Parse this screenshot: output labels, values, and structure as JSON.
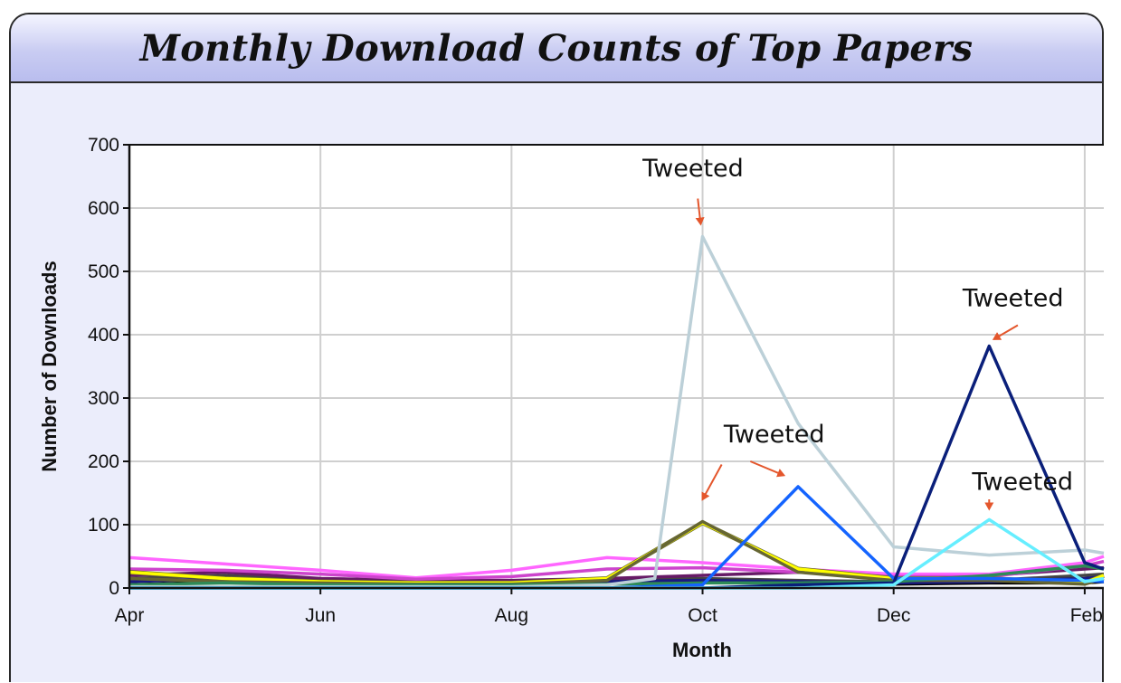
{
  "chart_data": {
    "type": "line",
    "title": "Monthly Download Counts of Top Papers",
    "xlabel": "Month",
    "ylabel": "Number of Downloads",
    "ylim": [
      0,
      700
    ],
    "xlim": [
      0,
      10.2
    ],
    "y_ticks": [
      0,
      100,
      200,
      300,
      400,
      500,
      600,
      700
    ],
    "x_ticks": [
      {
        "x": 0,
        "label": "Apr"
      },
      {
        "x": 2,
        "label": "Jun"
      },
      {
        "x": 4,
        "label": "Aug"
      },
      {
        "x": 6,
        "label": "Oct"
      },
      {
        "x": 8,
        "label": "Dec"
      },
      {
        "x": 10,
        "label": "Feb"
      }
    ],
    "grid": true,
    "legend": "none",
    "series": [
      {
        "color": "#000000",
        "x": [
          0,
          1,
          2,
          3,
          4,
          5,
          6,
          7,
          8,
          9,
          10,
          10.2
        ],
        "values": [
          5,
          10,
          8,
          6,
          6,
          8,
          10,
          8,
          6,
          8,
          8,
          10
        ]
      },
      {
        "color": "#444444",
        "x": [
          0,
          1,
          2,
          3,
          4,
          5,
          6,
          7,
          8,
          9,
          10,
          10.2
        ],
        "values": [
          15,
          20,
          12,
          10,
          10,
          12,
          15,
          12,
          10,
          12,
          20,
          22
        ]
      },
      {
        "color": "#1a1a80",
        "x": [
          0,
          1,
          2,
          3,
          4,
          5,
          6,
          7,
          8,
          9,
          10,
          10.2
        ],
        "values": [
          10,
          15,
          10,
          8,
          8,
          10,
          12,
          10,
          8,
          10,
          15,
          18
        ]
      },
      {
        "color": "#661a66",
        "x": [
          0,
          1,
          2,
          3,
          4,
          5,
          6,
          7,
          8,
          9,
          10,
          10.2
        ],
        "values": [
          20,
          25,
          15,
          12,
          12,
          15,
          20,
          25,
          18,
          20,
          30,
          32
        ]
      },
      {
        "color": "#ff66ff",
        "x": [
          0,
          1,
          2,
          3,
          4,
          5,
          6,
          7,
          8,
          9,
          10,
          10.2
        ],
        "values": [
          48,
          38,
          28,
          16,
          28,
          48,
          40,
          30,
          22,
          22,
          40,
          50
        ]
      },
      {
        "color": "#cc44cc",
        "x": [
          0,
          1,
          2,
          3,
          4,
          5,
          6,
          7,
          8,
          9,
          10,
          10.2
        ],
        "values": [
          30,
          28,
          22,
          14,
          18,
          30,
          32,
          25,
          18,
          18,
          35,
          42
        ]
      },
      {
        "color": "#ffff00",
        "x": [
          0,
          1,
          2,
          3,
          4,
          5,
          6,
          7,
          8,
          9,
          10,
          10.2
        ],
        "values": [
          25,
          15,
          10,
          8,
          8,
          15,
          103,
          30,
          15,
          15,
          8,
          20
        ]
      },
      {
        "color": "#666633",
        "x": [
          0,
          1,
          2,
          3,
          4,
          5,
          6,
          7,
          8,
          9,
          10,
          10.2
        ],
        "values": [
          15,
          10,
          8,
          6,
          6,
          12,
          105,
          25,
          12,
          12,
          6,
          15
        ]
      },
      {
        "color": "#2e8b57",
        "x": [
          0,
          1,
          2,
          3,
          4,
          5,
          6,
          7,
          8,
          9,
          10,
          10.2
        ],
        "values": [
          5,
          8,
          5,
          5,
          5,
          6,
          8,
          8,
          10,
          20,
          35,
          30
        ]
      },
      {
        "color": "#bcd0d8",
        "x": [
          0,
          1,
          2,
          3,
          4,
          5,
          5.5,
          6,
          7,
          8,
          9,
          10,
          10.2
        ],
        "values": [
          2,
          2,
          2,
          2,
          2,
          5,
          15,
          555,
          260,
          65,
          52,
          60,
          55
        ]
      },
      {
        "color": "#1464ff",
        "x": [
          0,
          1,
          2,
          3,
          4,
          5,
          6,
          7,
          8,
          9,
          10,
          10.2
        ],
        "values": [
          0,
          0,
          0,
          0,
          0,
          0,
          5,
          160,
          15,
          15,
          12,
          10
        ]
      },
      {
        "color": "#0a1f7a",
        "x": [
          0,
          1,
          2,
          3,
          4,
          5,
          6,
          7,
          8,
          9,
          10,
          10.2
        ],
        "values": [
          0,
          0,
          0,
          0,
          0,
          0,
          0,
          5,
          8,
          382,
          40,
          30
        ]
      },
      {
        "color": "#66eeff",
        "x": [
          0,
          1,
          2,
          3,
          4,
          5,
          6,
          7,
          8,
          9,
          10,
          10.2
        ],
        "values": [
          0,
          0,
          0,
          0,
          0,
          0,
          0,
          0,
          5,
          108,
          10,
          15
        ]
      }
    ],
    "annotations": [
      {
        "text": "Tweeted",
        "label_x": 5.9,
        "label_y": 650,
        "arrows": [
          {
            "from": [
              5.95,
              615
            ],
            "to": [
              5.98,
              575
            ]
          }
        ]
      },
      {
        "text": "Tweeted",
        "label_x": 9.25,
        "label_y": 445,
        "arrows": [
          {
            "from": [
              9.3,
              415
            ],
            "to": [
              9.05,
              393
            ]
          }
        ]
      },
      {
        "text": "Tweeted",
        "label_x": 6.75,
        "label_y": 230,
        "arrows": [
          {
            "from": [
              6.2,
              195
            ],
            "to": [
              6.0,
              140
            ]
          },
          {
            "from": [
              6.5,
              200
            ],
            "to": [
              6.85,
              178
            ]
          }
        ]
      },
      {
        "text": "Tweeted",
        "label_x": 9.35,
        "label_y": 155,
        "arrows": [
          {
            "from": [
              9.0,
              140
            ],
            "to": [
              9.0,
              125
            ]
          }
        ]
      }
    ]
  }
}
